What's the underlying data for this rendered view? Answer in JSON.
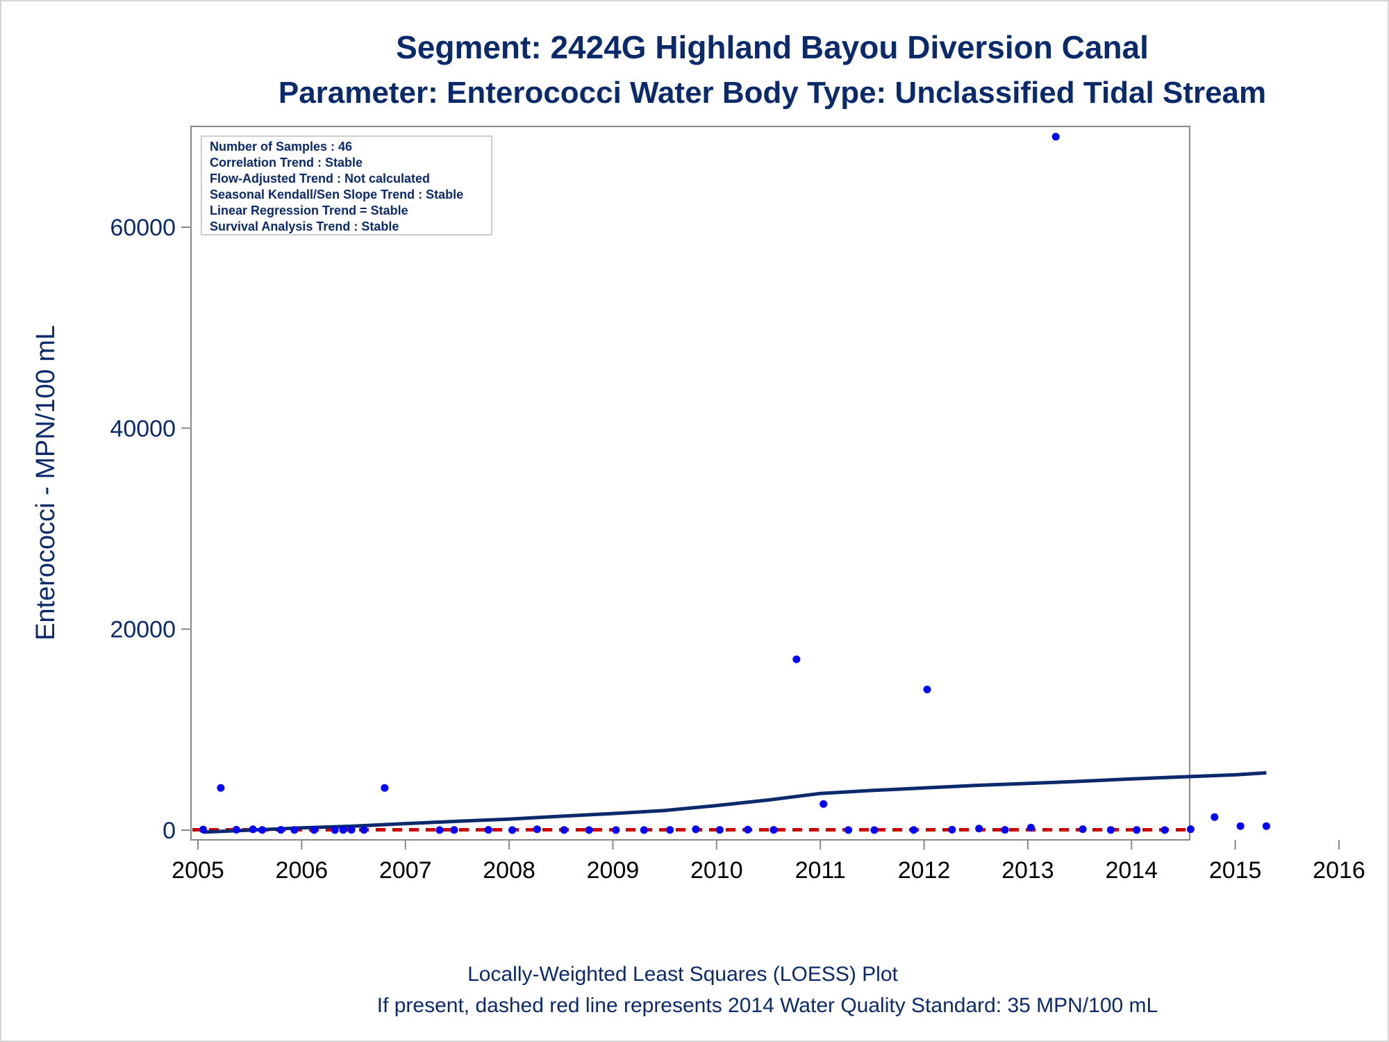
{
  "chart_data": {
    "type": "scatter",
    "title": "Segment: 2424G  Highland Bayou Diversion Canal",
    "subtitle": "Parameter: Enterococci   Water Body Type: Unclassified Tidal Stream",
    "ylabel": "Enterococci - MPN/100 mL",
    "footnote_1": "Locally-Weighted Least Squares (LOESS) Plot",
    "footnote_2": "If present, dashed red line represents 2014 Water Quality Standard: 35 MPN/100 mL",
    "xlim": [
      2005,
      2016
    ],
    "ylim": [
      -1000,
      70000
    ],
    "x_ticks": [
      2005,
      2006,
      2007,
      2008,
      2009,
      2010,
      2011,
      2012,
      2013,
      2014,
      2015,
      2016
    ],
    "y_ticks": [
      0,
      20000,
      40000,
      60000
    ],
    "info_box": [
      "Number of Samples : 46",
      "Correlation Trend : Stable",
      "Flow-Adjusted Trend : Not calculated",
      "Seasonal Kendall/Sen Slope Trend : Stable",
      "Linear Regression Trend = Stable",
      "Survival Analysis Trend : Stable"
    ],
    "standard_line": {
      "value": 35,
      "color": "#cc0000"
    },
    "colors": {
      "points": "#0000ff",
      "loess": "#0b2a6b",
      "text": "#0b2a6b",
      "axis": "#888888"
    },
    "series": [
      {
        "points": [
          [
            2005.05,
            60
          ],
          [
            2005.22,
            4200
          ],
          [
            2005.37,
            40
          ],
          [
            2005.53,
            80
          ],
          [
            2005.62,
            20
          ],
          [
            2005.8,
            30
          ],
          [
            2005.93,
            20
          ],
          [
            2006.12,
            10
          ],
          [
            2006.32,
            10
          ],
          [
            2006.4,
            20
          ],
          [
            2006.48,
            30
          ],
          [
            2006.6,
            20
          ],
          [
            2006.8,
            4200
          ],
          [
            2007.33,
            10
          ],
          [
            2007.47,
            20
          ],
          [
            2007.8,
            30
          ],
          [
            2008.03,
            10
          ],
          [
            2008.27,
            90
          ],
          [
            2008.53,
            20
          ],
          [
            2008.77,
            10
          ],
          [
            2009.03,
            10
          ],
          [
            2009.3,
            10
          ],
          [
            2009.55,
            20
          ],
          [
            2009.8,
            80
          ],
          [
            2010.03,
            30
          ],
          [
            2010.3,
            50
          ],
          [
            2010.55,
            30
          ],
          [
            2010.77,
            17000
          ],
          [
            2011.03,
            2600
          ],
          [
            2011.27,
            10
          ],
          [
            2011.52,
            10
          ],
          [
            2011.9,
            20
          ],
          [
            2012.03,
            14000
          ],
          [
            2012.27,
            40
          ],
          [
            2012.53,
            160
          ],
          [
            2012.78,
            30
          ],
          [
            2013.03,
            250
          ],
          [
            2013.27,
            69000
          ],
          [
            2013.53,
            100
          ],
          [
            2013.8,
            20
          ],
          [
            2014.05,
            20
          ],
          [
            2014.32,
            10
          ],
          [
            2014.57,
            100
          ],
          [
            2014.8,
            1300
          ],
          [
            2015.05,
            400
          ],
          [
            2015.3,
            400
          ]
        ]
      },
      {
        "name": "LOESS",
        "points": [
          [
            2005.05,
            -200
          ],
          [
            2005.5,
            0
          ],
          [
            2006.0,
            220
          ],
          [
            2006.5,
            400
          ],
          [
            2007.0,
            650
          ],
          [
            2007.5,
            880
          ],
          [
            2008.0,
            1100
          ],
          [
            2008.5,
            1380
          ],
          [
            2009.0,
            1650
          ],
          [
            2009.5,
            1950
          ],
          [
            2010.0,
            2450
          ],
          [
            2010.5,
            3000
          ],
          [
            2011.0,
            3650
          ],
          [
            2011.5,
            3950
          ],
          [
            2012.0,
            4200
          ],
          [
            2012.5,
            4450
          ],
          [
            2013.0,
            4650
          ],
          [
            2013.5,
            4850
          ],
          [
            2014.0,
            5100
          ],
          [
            2014.5,
            5300
          ],
          [
            2015.0,
            5500
          ],
          [
            2015.3,
            5700
          ]
        ]
      }
    ]
  }
}
